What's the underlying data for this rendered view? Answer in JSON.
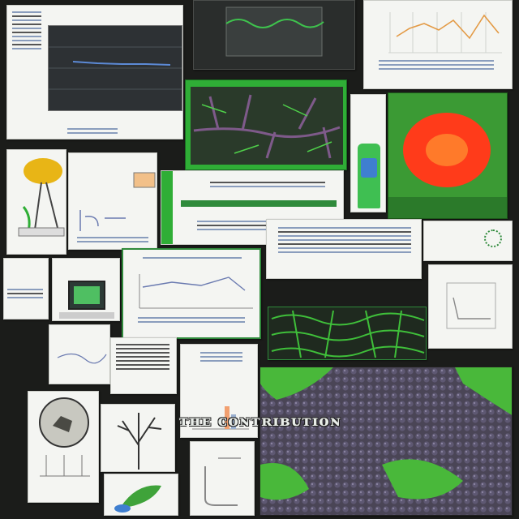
{
  "banner": {
    "text": "ᴛʜᴇ ᴄᴏɴᴛʀɪʙᴜᴛɪᴏɴ"
  },
  "colors": {
    "leaf_green": "#3fa33a",
    "bright_green": "#2fc04a",
    "flower_red": "#ff3b1a",
    "chart_line_orange": "#e39a45",
    "chart_line_green": "#3ec24d",
    "dark_background": "#1b1c1a",
    "berry_purple": "#4a4556",
    "paper": "#f4f5f2"
  },
  "icons": {
    "lamp": "desk-lamp-icon",
    "monitor": "monitor-icon",
    "tree": "tree-sketch-icon",
    "specimen": "circular-specimen-icon",
    "seal": "green-seal-icon",
    "bottle": "green-bottle-icon",
    "sprout": "sprout-icon"
  }
}
